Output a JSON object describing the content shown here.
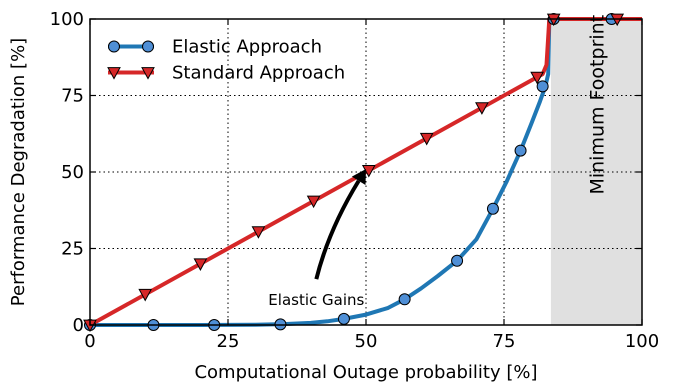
{
  "chart_data": {
    "type": "line",
    "xlabel": "Computational Outage probability [%]",
    "ylabel": "Performance Degradation [%]",
    "xlim": [
      0,
      100
    ],
    "ylim": [
      0,
      100
    ],
    "xticks": [
      0,
      25,
      50,
      75,
      100
    ],
    "yticks": [
      0,
      25,
      50,
      75,
      100
    ],
    "grid": true,
    "legend_position": "top-left",
    "series": [
      {
        "name": "Elastic Approach",
        "color": "#1f77b4",
        "marker": "circle",
        "marker_fill": "#4f8fd6",
        "curve": {
          "x": [
            0,
            10,
            20,
            30,
            35,
            40,
            43,
            46,
            50,
            54,
            57,
            60,
            63,
            66.5,
            70,
            73,
            75.5,
            78,
            80,
            81.5,
            82.5,
            83,
            83.2,
            84,
            100
          ],
          "y": [
            0,
            0,
            0,
            0.1,
            0.3,
            0.7,
            1.2,
            2,
            3.4,
            5.6,
            8.4,
            12,
            16,
            21,
            28,
            38,
            47,
            57,
            66,
            73,
            78,
            82,
            100,
            100,
            100
          ]
        },
        "markers": {
          "x": [
            0,
            11.5,
            22.5,
            34.5,
            46,
            57,
            66.5,
            73,
            78,
            82,
            84,
            94.5
          ],
          "y": [
            0,
            0,
            0,
            0.2,
            2,
            8.4,
            21,
            38,
            57,
            78,
            100,
            100
          ]
        }
      },
      {
        "name": "Standard Approach",
        "color": "#d62728",
        "marker": "triangle-down",
        "marker_fill": "#d62728",
        "curve": {
          "x": [
            0,
            82,
            82.7,
            83.2,
            84,
            100
          ],
          "y": [
            0,
            82,
            85,
            100,
            100,
            100
          ]
        },
        "markers": {
          "x": [
            0,
            10,
            20,
            30.5,
            40.5,
            50.5,
            61,
            71,
            81,
            84,
            95.5
          ],
          "y": [
            0,
            10,
            20,
            30.5,
            40.5,
            50.5,
            61,
            71,
            81,
            100,
            100
          ]
        }
      }
    ],
    "shaded_region": {
      "x": [
        83.5,
        100
      ],
      "color": "#e0e0e0",
      "label": "Minimum Footprint"
    },
    "annotations": [
      {
        "text": "Elastic Gains",
        "arrow_from": [
          41,
          15
        ],
        "arrow_to": [
          50,
          51
        ]
      }
    ]
  }
}
